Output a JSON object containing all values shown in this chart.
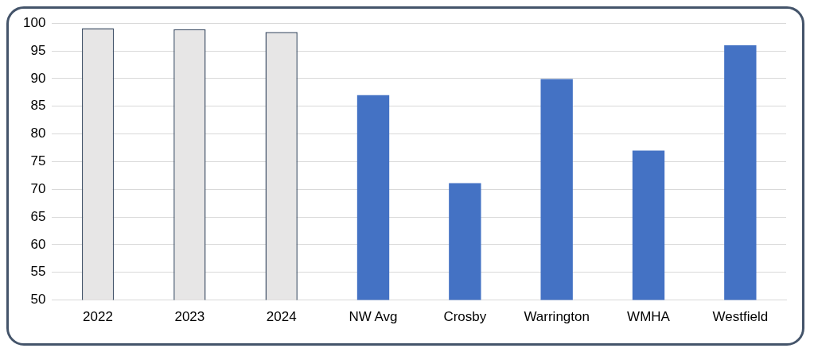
{
  "chart_data": {
    "type": "bar",
    "categories": [
      "2022",
      "2023",
      "2024",
      "NW Avg",
      "Crosby",
      "Warrington",
      "WMHA",
      "Westfield"
    ],
    "values": [
      99.1,
      98.9,
      98.4,
      87,
      71.1,
      89.9,
      77,
      96
    ],
    "colors": [
      "#e7e6e6",
      "#e7e6e6",
      "#e7e6e6",
      "#4472c4",
      "#4472c4",
      "#4472c4",
      "#4472c4",
      "#4472c4"
    ],
    "ylim": [
      50,
      100
    ],
    "yticks": [
      50,
      55,
      60,
      65,
      70,
      75,
      80,
      85,
      90,
      95,
      100
    ],
    "grid": "y",
    "legend": false
  }
}
